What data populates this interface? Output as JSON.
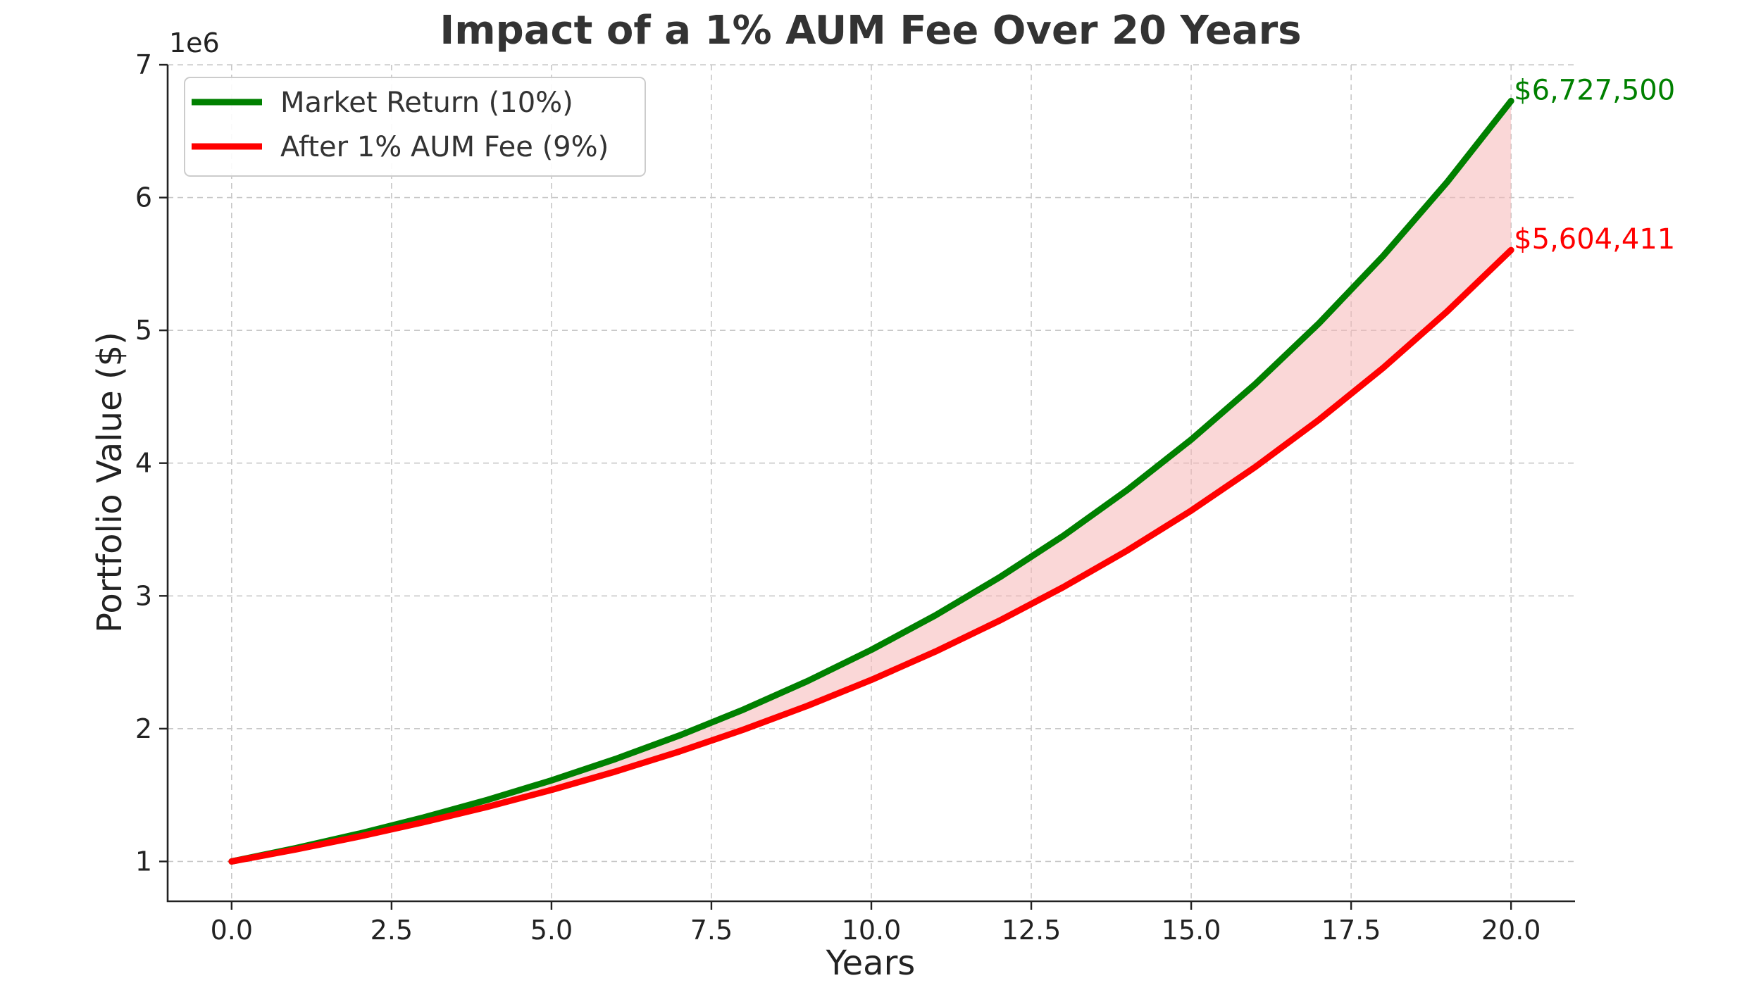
{
  "chart_data": {
    "type": "line",
    "title": "Impact of a 1% AUM Fee Over 20 Years",
    "xlabel": "Years",
    "ylabel": "Portfolio Value ($)",
    "y_offset_label": "1e6",
    "y_scale": 1000000,
    "xlim": [
      -1,
      21
    ],
    "ylim": [
      700000,
      7000000
    ],
    "x_ticks": [
      0,
      2.5,
      5,
      7.5,
      10,
      12.5,
      15,
      17.5,
      20
    ],
    "x_tick_labels": [
      "0.0",
      "2.5",
      "5.0",
      "7.5",
      "10.0",
      "12.5",
      "15.0",
      "17.5",
      "20.0"
    ],
    "y_ticks": [
      1000000,
      2000000,
      3000000,
      4000000,
      5000000,
      6000000,
      7000000
    ],
    "y_tick_labels": [
      "1",
      "2",
      "3",
      "4",
      "5",
      "6",
      "7"
    ],
    "grid": true,
    "legend_position": "top-left",
    "x": [
      0,
      1,
      2,
      3,
      4,
      5,
      6,
      7,
      8,
      9,
      10,
      11,
      12,
      13,
      14,
      15,
      16,
      17,
      18,
      19,
      20
    ],
    "series": [
      {
        "name": "Market Return (10%)",
        "color": "#008000",
        "values": [
          1000000,
          1100000,
          1210000,
          1331000,
          1464100,
          1610510,
          1771561,
          1948717,
          2143589,
          2357948,
          2593742,
          2853117,
          3138428,
          3452271,
          3797498,
          4177248,
          4594973,
          5054470,
          5559917,
          6115909,
          6727500
        ],
        "end_label": "$6,727,500"
      },
      {
        "name": "After 1% AUM Fee (9%)",
        "color": "#ff0000",
        "values": [
          1000000,
          1090000,
          1188100,
          1295029,
          1411582,
          1538624,
          1677100,
          1828039,
          1992563,
          2171893,
          2367364,
          2580426,
          2812665,
          3065805,
          3341727,
          3642482,
          3970306,
          4327633,
          4717120,
          5141661,
          5604411
        ],
        "end_label": "$5,604,411"
      }
    ],
    "fill_between_color": "#f5b7b7"
  }
}
